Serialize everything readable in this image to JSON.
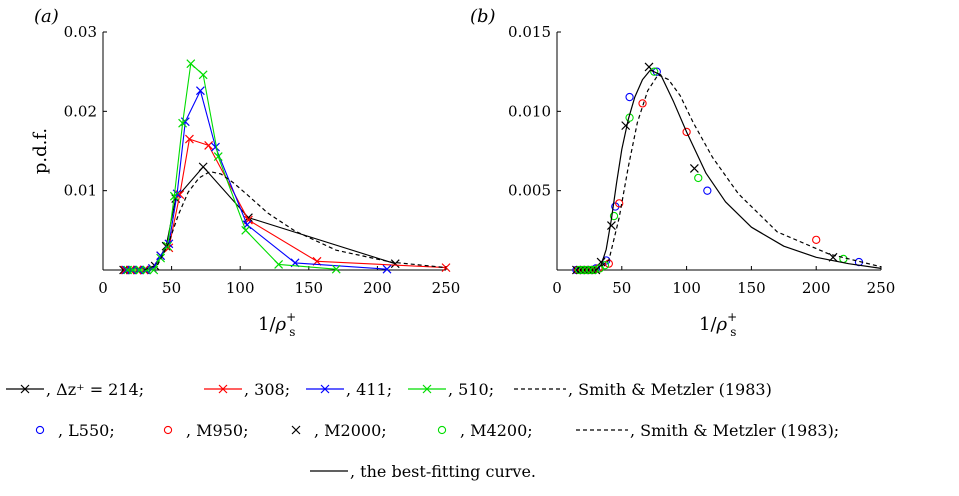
{
  "chart_data": [
    {
      "type": "line",
      "panel_label": "(a)",
      "xlabel": "1/ρ",
      "xlabel_sup": "+",
      "xlabel_sub": "s",
      "ylabel": "p.d.f.",
      "xlim": [
        0,
        250
      ],
      "ylim": [
        0,
        0.03
      ],
      "xticks": [
        "0",
        "50",
        "100",
        "150",
        "200",
        "250"
      ],
      "yticks": [
        "0.01",
        "0.02",
        "0.03"
      ],
      "series": [
        {
          "name": "Δz⁺ = 214",
          "color": "#000000",
          "marker": "x",
          "style": "solid",
          "x": [
            15,
            20,
            25,
            30,
            38,
            46,
            53,
            73,
            106,
            213
          ],
          "y": [
            0,
            0,
            0,
            0,
            0.0005,
            0.003,
            0.009,
            0.013,
            0.0066,
            0.0008
          ]
        },
        {
          "name": "308",
          "color": "#ff0000",
          "marker": "x",
          "style": "solid",
          "x": [
            16,
            20,
            25,
            30,
            36,
            42,
            48,
            56,
            63,
            77,
            106,
            156,
            250
          ],
          "y": [
            0,
            0,
            0,
            0,
            0.0002,
            0.0018,
            0.0028,
            0.0095,
            0.0165,
            0.0157,
            0.0063,
            0.0011,
            0.0003
          ]
        },
        {
          "name": "411",
          "color": "#0000ff",
          "marker": "x",
          "style": "solid",
          "x": [
            17,
            21,
            26,
            31,
            36,
            42,
            48,
            54,
            60,
            71,
            82,
            105,
            140,
            207
          ],
          "y": [
            0,
            0,
            0,
            0,
            0.0002,
            0.0018,
            0.0033,
            0.0096,
            0.0187,
            0.0226,
            0.0155,
            0.0057,
            0.0009,
            0.0001
          ]
        },
        {
          "name": "510",
          "color": "#00dd00",
          "marker": "x",
          "style": "solid",
          "x": [
            18,
            22,
            27,
            32,
            37,
            42,
            47,
            52,
            58,
            64,
            73,
            84,
            104,
            128,
            170
          ],
          "y": [
            0,
            0,
            0,
            0,
            0,
            0.0015,
            0.003,
            0.0093,
            0.0185,
            0.026,
            0.0246,
            0.0143,
            0.005,
            0.0007,
            0.0001
          ]
        },
        {
          "name": "Smith & Metzler (1983)",
          "color": "#000000",
          "marker": "none",
          "style": "dashed",
          "x": [
            30,
            40,
            48,
            55,
            62,
            70,
            78,
            86,
            95,
            105,
            120,
            140,
            170,
            210,
            250
          ],
          "y": [
            0,
            0.0007,
            0.0035,
            0.007,
            0.0098,
            0.0116,
            0.0124,
            0.0121,
            0.011,
            0.0095,
            0.0072,
            0.0049,
            0.0025,
            0.001,
            0.0003
          ]
        }
      ]
    },
    {
      "type": "scatter",
      "panel_label": "(b)",
      "xlabel": "1/ρ",
      "xlabel_sup": "+",
      "xlabel_sub": "s",
      "ylabel": "",
      "xlim": [
        0,
        250
      ],
      "ylim": [
        0,
        0.015
      ],
      "xticks": [
        "0",
        "50",
        "100",
        "150",
        "200",
        "250"
      ],
      "yticks": [
        "0.005",
        "0.010",
        "0.015"
      ],
      "series": [
        {
          "name": "L550",
          "color": "#0000ff",
          "marker": "o",
          "x": [
            15,
            18,
            21,
            24,
            27,
            30,
            38,
            45,
            56,
            77,
            116,
            233
          ],
          "y": [
            0,
            0,
            0,
            0,
            0,
            0.0001,
            0.0006,
            0.004,
            0.0109,
            0.0125,
            0.005,
            0.0005
          ]
        },
        {
          "name": "M950",
          "color": "#ff0000",
          "marker": "o",
          "x": [
            16,
            19,
            22,
            25,
            28,
            32,
            40,
            48,
            66,
            100,
            200
          ],
          "y": [
            0,
            0,
            0,
            0,
            0,
            0.0001,
            0.0004,
            0.0042,
            0.0105,
            0.0087,
            0.0019
          ]
        },
        {
          "name": "M2000",
          "color": "#000000",
          "marker": "x",
          "x": [
            15,
            18,
            21,
            24,
            27,
            30,
            34,
            42,
            53,
            71,
            106,
            213
          ],
          "y": [
            0,
            0,
            0,
            0,
            0,
            0,
            0.0005,
            0.0028,
            0.0091,
            0.0128,
            0.0064,
            0.0008
          ]
        },
        {
          "name": "M4200",
          "color": "#00dd00",
          "marker": "o",
          "x": [
            17,
            20,
            23,
            26,
            29,
            33,
            37,
            44,
            56,
            75,
            109,
            221
          ],
          "y": [
            0,
            0,
            0,
            0,
            0,
            0.0001,
            0.0003,
            0.0034,
            0.0096,
            0.0125,
            0.0058,
            0.0007
          ]
        },
        {
          "name": "Smith & Metzler (1983)",
          "color": "#000000",
          "marker": "none",
          "style": "dashed",
          "x": [
            30,
            40,
            48,
            55,
            62,
            70,
            78,
            86,
            95,
            105,
            120,
            140,
            170,
            210,
            250
          ],
          "y": [
            0,
            0.0006,
            0.0033,
            0.0065,
            0.0093,
            0.0113,
            0.0123,
            0.012,
            0.011,
            0.0093,
            0.0071,
            0.0048,
            0.0024,
            0.001,
            0.0002
          ]
        },
        {
          "name": "the best-fitting curve",
          "color": "#000000",
          "marker": "none",
          "style": "solid",
          "x": [
            30,
            34,
            38,
            42,
            46,
            50,
            55,
            60,
            66,
            72,
            80,
            90,
            100,
            115,
            130,
            150,
            175,
            200,
            225,
            250
          ],
          "y": [
            0,
            0.0003,
            0.0013,
            0.0032,
            0.0055,
            0.0076,
            0.0095,
            0.0109,
            0.012,
            0.0126,
            0.0123,
            0.0106,
            0.0087,
            0.0061,
            0.0043,
            0.0027,
            0.0015,
            0.0008,
            0.0004,
            0.0001
          ]
        }
      ]
    }
  ],
  "legend": {
    "row1": [
      {
        "label": ", Δz⁺ = 214;",
        "color": "#000000",
        "style": "solid",
        "marker": "x"
      },
      {
        "label": ", 308;",
        "color": "#ff0000",
        "style": "solid",
        "marker": "x"
      },
      {
        "label": ", 411;",
        "color": "#0000ff",
        "style": "solid",
        "marker": "x"
      },
      {
        "label": ", 510;",
        "color": "#00dd00",
        "style": "solid",
        "marker": "x"
      },
      {
        "label": ", Smith & Metzler (1983)",
        "color": "#000000",
        "style": "dashed",
        "marker": "none"
      }
    ],
    "row2": [
      {
        "label": ", L550;",
        "color": "#0000ff",
        "style": "none",
        "marker": "o"
      },
      {
        "label": ", M950;",
        "color": "#ff0000",
        "style": "none",
        "marker": "o"
      },
      {
        "label": ", M2000;",
        "color": "#000000",
        "style": "none",
        "marker": "x"
      },
      {
        "label": ", M4200;",
        "color": "#00dd00",
        "style": "none",
        "marker": "o"
      },
      {
        "label": ", Smith & Metzler (1983);",
        "color": "#000000",
        "style": "dashed",
        "marker": "none"
      }
    ],
    "row3": [
      {
        "label": ", the best-fitting curve.",
        "color": "#000000",
        "style": "solid",
        "marker": "none"
      }
    ]
  }
}
